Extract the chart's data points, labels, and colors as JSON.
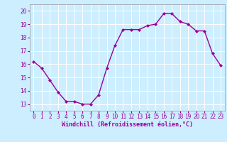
{
  "x": [
    0,
    1,
    2,
    3,
    4,
    5,
    6,
    7,
    8,
    9,
    10,
    11,
    12,
    13,
    14,
    15,
    16,
    17,
    18,
    19,
    20,
    21,
    22,
    23
  ],
  "y": [
    16.2,
    15.7,
    14.8,
    13.9,
    13.2,
    13.2,
    13.0,
    13.0,
    13.7,
    15.7,
    17.4,
    18.6,
    18.6,
    18.6,
    18.9,
    19.0,
    19.8,
    19.8,
    19.2,
    19.0,
    18.5,
    18.5,
    16.8,
    15.9
  ],
  "line_color": "#990099",
  "marker": "D",
  "markersize": 2.0,
  "bg_color": "#cceeff",
  "grid_color": "#ffffff",
  "xlabel": "Windchill (Refroidissement éolien,°C)",
  "xlabel_color": "#990099",
  "ylim": [
    12.5,
    20.5
  ],
  "xlim": [
    -0.5,
    23.5
  ],
  "yticks": [
    13,
    14,
    15,
    16,
    17,
    18,
    19,
    20
  ],
  "xtick_labels": [
    "0",
    "1",
    "2",
    "3",
    "4",
    "5",
    "6",
    "7",
    "8",
    "9",
    "10",
    "11",
    "12",
    "13",
    "14",
    "15",
    "16",
    "17",
    "18",
    "19",
    "20",
    "21",
    "22",
    "23"
  ],
  "tick_color": "#990099",
  "linewidth": 1.0,
  "tick_fontsize": 5.5,
  "ylabel_fontsize": 5.5,
  "xlabel_fontsize": 6.0
}
